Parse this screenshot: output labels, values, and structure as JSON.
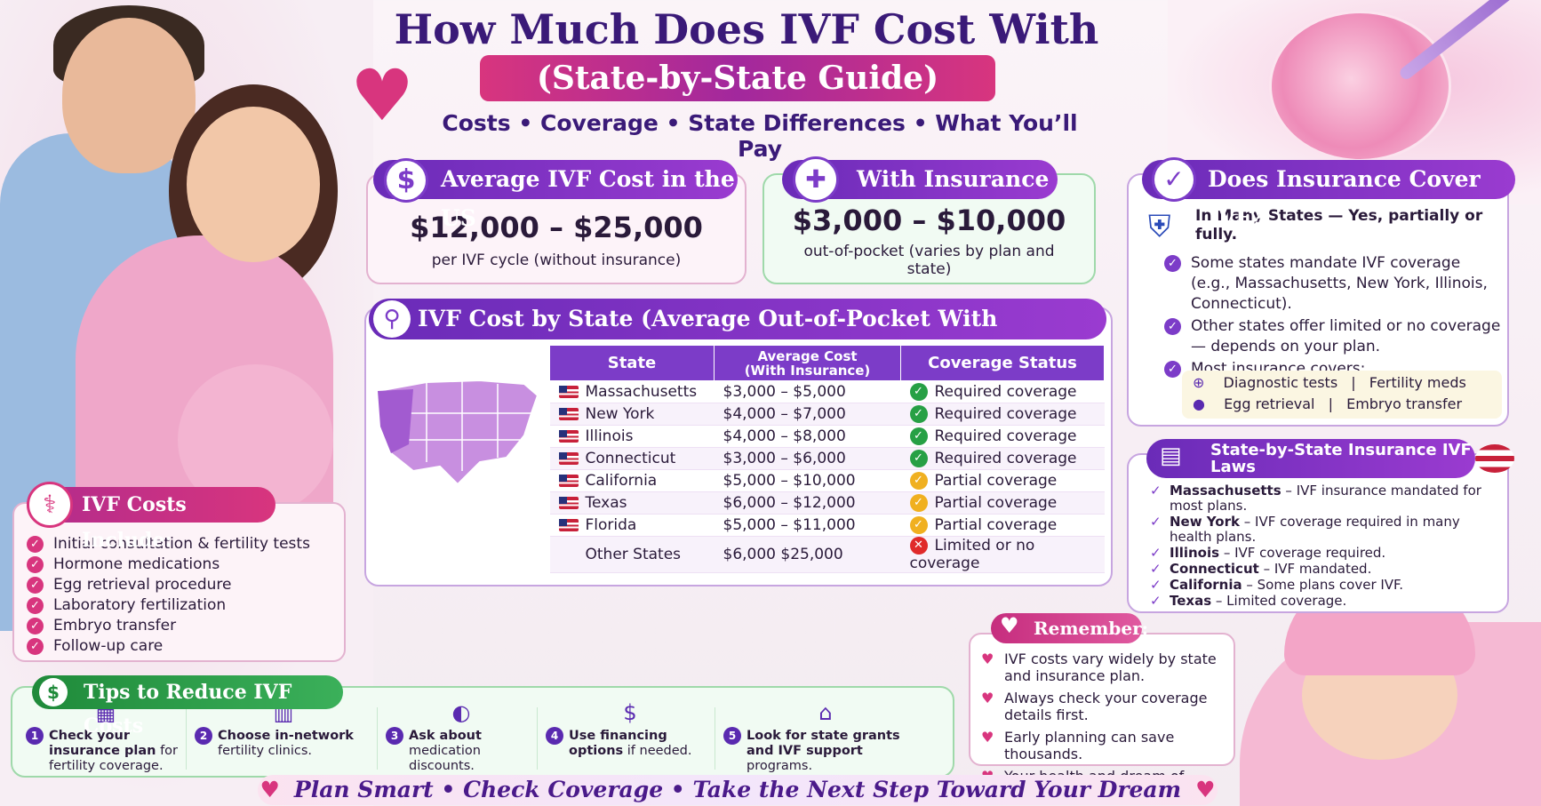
{
  "header": {
    "title": "How Much Does IVF Cost With Insurance?",
    "subtitle": "(State-by-State Guide)",
    "tagline": "Costs • Coverage • State Differences • What You’ll Pay"
  },
  "average_cost": {
    "label": "Average IVF Cost in the US",
    "value": "$12,000 – $25,000",
    "note": "per IVF cycle (without insurance)",
    "icon": "money-bag-icon"
  },
  "with_insurance": {
    "label": "With Insurance",
    "value": "$3,000 – $10,000",
    "note": "out-of-pocket (varies by plan and state)",
    "icon": "medical-shield-icon"
  },
  "state_table": {
    "title": "IVF Cost by State (Average Out-of-Pocket With Insurance)",
    "headers": {
      "state": "State",
      "avg_cost": "Average Cost",
      "avg_cost_sub": "(With Insurance)",
      "coverage": "Coverage Status"
    },
    "rows": [
      {
        "state": "Massachusetts",
        "cost": "$3,000 – $5,000",
        "coverage": "Required coverage",
        "status": "green"
      },
      {
        "state": "New York",
        "cost": "$4,000 – $7,000",
        "coverage": "Required coverage",
        "status": "green"
      },
      {
        "state": "Illinois",
        "cost": "$4,000 – $8,000",
        "coverage": "Required coverage",
        "status": "green"
      },
      {
        "state": "Connecticut",
        "cost": "$3,000 – $6,000",
        "coverage": "Required coverage",
        "status": "green"
      },
      {
        "state": "California",
        "cost": "$5,000 – $10,000",
        "coverage": "Partial coverage",
        "status": "yellow"
      },
      {
        "state": "Texas",
        "cost": "$6,000 – $12,000",
        "coverage": "Partial coverage",
        "status": "yellow"
      },
      {
        "state": "Florida",
        "cost": "$5,000 – $11,000",
        "coverage": "Partial coverage",
        "status": "yellow"
      },
      {
        "state": "Other States",
        "cost": "$6,000   $25,000",
        "coverage": "Limited or no coverage",
        "status": "red"
      }
    ]
  },
  "costs_include": {
    "title": "IVF Costs Include:",
    "items": [
      "Initial consultation & fertility tests",
      "Hormone medications",
      "Egg retrieval procedure",
      "Laboratory fertilization",
      "Embryo transfer",
      "Follow-up care"
    ]
  },
  "tips": {
    "title": "Tips to Reduce IVF Costs",
    "items": [
      {
        "num": "1",
        "text_bold": "Check your insurance plan",
        "text": "for fertility coverage.",
        "icon": "clipboard-icon"
      },
      {
        "num": "2",
        "text_bold": "Choose in-network",
        "text": "fertility clinics.",
        "icon": "hospital-icon"
      },
      {
        "num": "3",
        "text_bold": "Ask about",
        "text": "medication discounts.",
        "icon": "pill-icon"
      },
      {
        "num": "4",
        "text_bold": "Use financing options",
        "text": "if needed.",
        "icon": "dollar-coin-icon"
      },
      {
        "num": "5",
        "text_bold": "Look for state grants and IVF support",
        "text": "programs.",
        "icon": "bank-icon"
      }
    ]
  },
  "coverage_question": {
    "title": "Does Insurance Cover IVF?",
    "lead": "In Many States — Yes, partially or fully.",
    "items": [
      "Some states mandate IVF coverage (e.g., Massachusetts, New York, Illinois, Connecticut).",
      "Other states offer limited or no coverage — depends on your plan.",
      "Most insurance covers:"
    ],
    "covers": {
      "row1_a": "Diagnostic tests",
      "row1_b": "Fertility meds",
      "row2_a": "Egg retrieval",
      "row2_b": "Embryo transfer",
      "separator": "|"
    }
  },
  "laws": {
    "title": "State-by-State Insurance IVF Laws",
    "items": [
      {
        "state": "Massachusetts",
        "text": " – IVF insurance mandated for most plans."
      },
      {
        "state": "New York",
        "text": " – IVF coverage required in many health plans."
      },
      {
        "state": "Illinois",
        "text": " – IVF coverage required."
      },
      {
        "state": "Connecticut",
        "text": " – IVF mandated."
      },
      {
        "state": "California",
        "text": " – Some plans cover IVF."
      },
      {
        "state": "Texas",
        "text": " – Limited coverage."
      }
    ]
  },
  "remember": {
    "title": "Remember:",
    "items": [
      "IVF costs vary widely by state and insurance plan.",
      "Always check your coverage details first.",
      "Early planning can save thousands.",
      "Your health and dream of parenthood are worth it."
    ]
  },
  "footer": {
    "text": "Plan Smart • Check Coverage • Take the Next Step Toward Your Dream"
  },
  "colors": {
    "primary": "#3a1a78",
    "accent": "#d8357e",
    "table_header": "#7c3cc8",
    "green": "#27a045",
    "yellow": "#f0b020",
    "red": "#e02a2a"
  }
}
